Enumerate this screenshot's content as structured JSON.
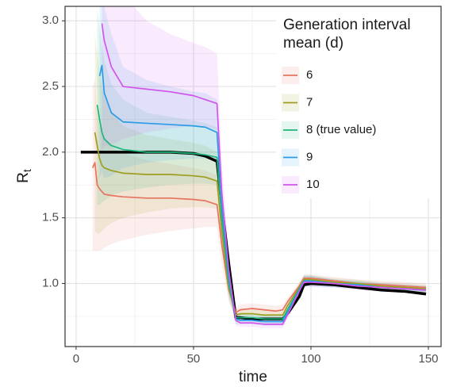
{
  "chart_data": {
    "type": "line",
    "x_label": "time",
    "y_label": "R",
    "y_label_sub": "t",
    "legend_title": "Generation interval mean (d)",
    "legend_position": "top-right",
    "grid": true,
    "xlim": [
      -4.7,
      155.4
    ],
    "xticks": [
      0,
      50,
      100,
      150
    ],
    "minor_xticks": [
      25,
      75,
      125
    ],
    "ylim": [
      0.52,
      3.11
    ],
    "yticks": [
      {
        "value": 1,
        "label": "1.0"
      },
      1.5,
      {
        "value": 2,
        "label": "2.0"
      },
      2.5,
      {
        "value": 3,
        "label": "3.0"
      }
    ],
    "minor_yticks": [
      0.75,
      1.25,
      1.75,
      2.25,
      2.75
    ],
    "x": [
      2,
      7,
      8,
      9,
      10,
      11,
      12,
      15,
      20,
      30,
      40,
      50,
      55,
      60,
      62,
      65,
      68,
      70,
      75,
      80,
      85,
      88,
      90,
      95,
      97,
      100,
      110,
      120,
      130,
      140,
      149
    ],
    "true_rt": {
      "color": "#000000",
      "values": [
        2.0,
        2.0,
        2.0,
        2.0,
        2.0,
        2.0,
        2.0,
        2.0,
        2.0,
        2.0,
        2.0,
        1.99,
        1.97,
        1.93,
        1.6,
        1.15,
        0.74,
        0.74,
        0.73,
        0.73,
        0.73,
        0.73,
        0.77,
        0.9,
        0.99,
        1.0,
        0.99,
        0.97,
        0.95,
        0.94,
        0.92
      ]
    },
    "series": [
      {
        "name": "6",
        "color": "#E8735F",
        "values": [
          null,
          1.88,
          1.92,
          1.75,
          1.72,
          1.7,
          1.68,
          1.67,
          1.66,
          1.65,
          1.65,
          1.64,
          1.63,
          1.6,
          1.3,
          0.95,
          0.78,
          0.8,
          0.81,
          0.8,
          0.79,
          0.8,
          0.86,
          0.98,
          1.04,
          1.04,
          1.02,
          1.0,
          0.99,
          0.98,
          0.97
        ],
        "lower": [
          null,
          1.25,
          1.25,
          1.25,
          1.25,
          1.26,
          1.27,
          1.3,
          1.33,
          1.37,
          1.4,
          1.42,
          1.43,
          1.43,
          1.15,
          0.86,
          0.74,
          0.76,
          0.77,
          0.77,
          0.76,
          0.77,
          0.83,
          0.95,
          1.0,
          1.0,
          0.99,
          0.97,
          0.96,
          0.95,
          0.94
        ],
        "upper": [
          null,
          2.5,
          2.55,
          2.3,
          2.2,
          2.15,
          2.1,
          2.04,
          1.99,
          1.94,
          1.91,
          1.88,
          1.86,
          1.82,
          1.45,
          1.04,
          0.82,
          0.84,
          0.85,
          0.84,
          0.83,
          0.84,
          0.89,
          1.01,
          1.07,
          1.07,
          1.05,
          1.03,
          1.02,
          1.01,
          1.0
        ]
      },
      {
        "name": "7",
        "color": "#9E9E1E",
        "values": [
          null,
          null,
          2.15,
          2.05,
          1.95,
          1.9,
          1.88,
          1.86,
          1.84,
          1.83,
          1.83,
          1.82,
          1.81,
          1.78,
          1.4,
          0.97,
          0.76,
          0.77,
          0.77,
          0.76,
          0.76,
          0.76,
          0.83,
          0.97,
          1.03,
          1.03,
          1.01,
          1.0,
          0.98,
          0.97,
          0.96
        ],
        "lower": [
          null,
          null,
          1.4,
          1.38,
          1.38,
          1.4,
          1.42,
          1.46,
          1.5,
          1.54,
          1.57,
          1.58,
          1.58,
          1.57,
          1.25,
          0.88,
          0.72,
          0.73,
          0.74,
          0.73,
          0.73,
          0.73,
          0.8,
          0.94,
          0.99,
          0.99,
          0.98,
          0.97,
          0.95,
          0.94,
          0.93
        ],
        "upper": [
          null,
          null,
          2.9,
          2.75,
          2.6,
          2.5,
          2.42,
          2.3,
          2.2,
          2.13,
          2.1,
          2.07,
          2.05,
          2.0,
          1.58,
          1.06,
          0.8,
          0.81,
          0.81,
          0.8,
          0.8,
          0.8,
          0.86,
          1.0,
          1.06,
          1.06,
          1.04,
          1.03,
          1.01,
          1.0,
          0.99
        ]
      },
      {
        "name": "8 (true value)",
        "color": "#1DB57A",
        "values": [
          null,
          null,
          null,
          2.36,
          2.25,
          2.15,
          2.1,
          2.05,
          2.02,
          2.0,
          2.0,
          1.99,
          1.98,
          1.96,
          1.5,
          1.0,
          0.74,
          0.74,
          0.74,
          0.73,
          0.73,
          0.73,
          0.8,
          0.96,
          1.02,
          1.02,
          1.0,
          0.99,
          0.97,
          0.96,
          0.95
        ],
        "lower": [
          null,
          null,
          null,
          1.6,
          1.6,
          1.62,
          1.63,
          1.67,
          1.7,
          1.73,
          1.75,
          1.76,
          1.76,
          1.75,
          1.35,
          0.9,
          0.7,
          0.71,
          0.71,
          0.7,
          0.7,
          0.7,
          0.77,
          0.93,
          0.98,
          0.98,
          0.97,
          0.96,
          0.94,
          0.93,
          0.92
        ],
        "upper": [
          null,
          null,
          null,
          3.1,
          2.95,
          2.8,
          2.7,
          2.52,
          2.4,
          2.3,
          2.27,
          2.24,
          2.22,
          2.19,
          1.67,
          1.1,
          0.78,
          0.77,
          0.77,
          0.76,
          0.76,
          0.76,
          0.83,
          0.99,
          1.06,
          1.06,
          1.03,
          1.02,
          1.0,
          0.99,
          0.98
        ]
      },
      {
        "name": "9",
        "color": "#2A9BE6",
        "values": [
          null,
          null,
          null,
          null,
          2.58,
          2.66,
          2.45,
          2.3,
          2.23,
          2.22,
          2.21,
          2.2,
          2.19,
          2.15,
          1.6,
          1.05,
          0.73,
          0.72,
          0.72,
          0.71,
          0.71,
          0.71,
          0.78,
          0.95,
          1.02,
          1.02,
          1.0,
          0.99,
          0.97,
          0.96,
          0.95
        ],
        "lower": [
          null,
          null,
          null,
          null,
          1.8,
          1.85,
          1.8,
          1.82,
          1.88,
          1.92,
          1.94,
          1.95,
          1.95,
          1.93,
          1.45,
          0.95,
          0.69,
          0.69,
          0.69,
          0.68,
          0.68,
          0.68,
          0.75,
          0.92,
          0.98,
          0.98,
          0.97,
          0.96,
          0.94,
          0.93,
          0.92
        ],
        "upper": [
          null,
          null,
          null,
          null,
          3.2,
          3.2,
          3.1,
          2.9,
          2.65,
          2.55,
          2.5,
          2.46,
          2.45,
          2.4,
          1.78,
          1.15,
          0.77,
          0.76,
          0.76,
          0.75,
          0.75,
          0.75,
          0.82,
          0.99,
          1.06,
          1.06,
          1.03,
          1.02,
          1.0,
          0.99,
          0.98
        ]
      },
      {
        "name": "10",
        "color": "#D155EC",
        "values": [
          null,
          null,
          null,
          null,
          null,
          2.98,
          2.85,
          2.65,
          2.5,
          2.48,
          2.46,
          2.43,
          2.4,
          2.37,
          1.7,
          1.1,
          0.72,
          0.7,
          0.7,
          0.69,
          0.69,
          0.69,
          0.76,
          0.94,
          1.01,
          1.01,
          1.0,
          0.98,
          0.97,
          0.96,
          0.95
        ],
        "lower": [
          null,
          null,
          null,
          null,
          null,
          2.0,
          2.05,
          2.05,
          2.1,
          2.15,
          2.18,
          2.2,
          2.19,
          2.17,
          1.55,
          1.0,
          0.68,
          0.67,
          0.67,
          0.66,
          0.66,
          0.66,
          0.73,
          0.91,
          0.97,
          0.97,
          0.97,
          0.95,
          0.94,
          0.93,
          0.92
        ],
        "upper": [
          null,
          null,
          null,
          null,
          null,
          3.3,
          3.3,
          3.3,
          3.2,
          3.0,
          2.9,
          2.83,
          2.8,
          2.75,
          1.95,
          1.22,
          0.77,
          0.74,
          0.74,
          0.73,
          0.73,
          0.73,
          0.8,
          0.98,
          1.05,
          1.05,
          1.03,
          1.01,
          1.0,
          0.99,
          0.98
        ]
      }
    ]
  }
}
